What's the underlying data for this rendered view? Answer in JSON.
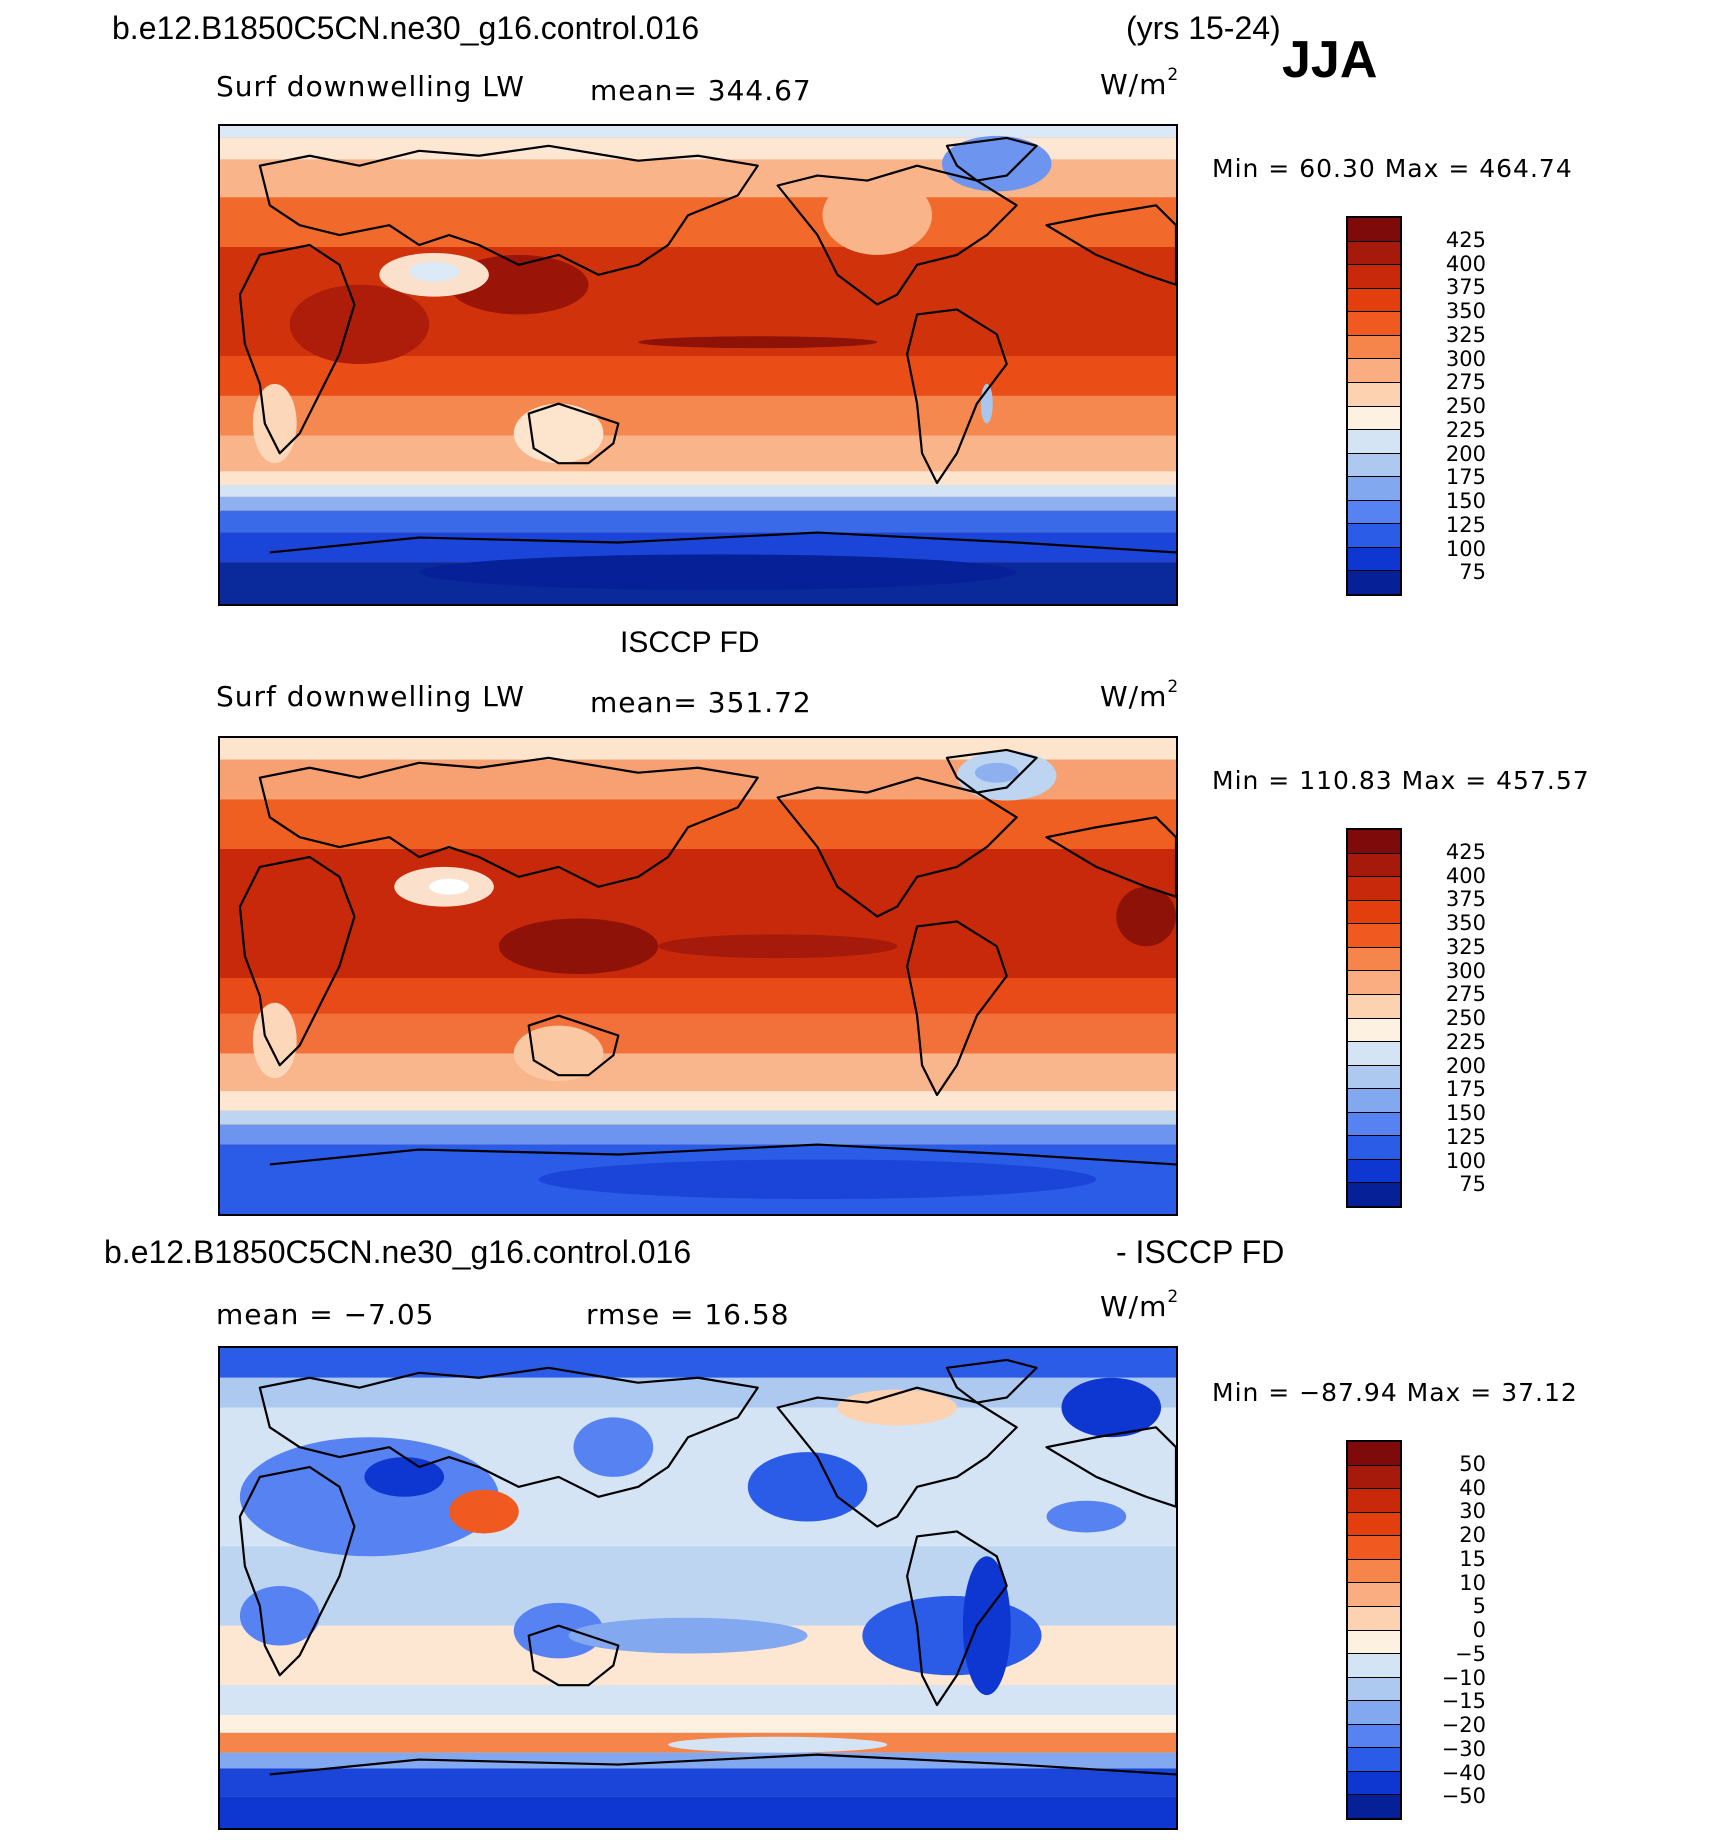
{
  "header": {
    "case_name": "b.e12.B1850C5CN.ne30_g16.control.016",
    "years": "(yrs 15-24)",
    "season": "JJA"
  },
  "panels": [
    {
      "title": "",
      "variable": "Surf downwelling LW",
      "stat": "mean= 344.67",
      "units": "W/m",
      "units_exp": "2",
      "minmax": "Min =  60.30 Max = 464.74"
    },
    {
      "title": "ISCCP FD",
      "variable": "Surf downwelling LW",
      "stat": "mean= 351.72",
      "units": "W/m",
      "units_exp": "2",
      "minmax": "Min = 110.83 Max = 457.57"
    },
    {
      "title_left": "b.e12.B1850C5CN.ne30_g16.control.016",
      "title_right": "- ISCCP FD",
      "stat_mean": "mean =  −7.05",
      "stat_rmse": "rmse =  16.58",
      "units": "W/m",
      "units_exp": "2",
      "minmax": "Min = −87.94 Max =  37.12"
    }
  ],
  "colorbars": {
    "absolute": {
      "labels": [
        "425",
        "400",
        "375",
        "350",
        "325",
        "300",
        "275",
        "250",
        "225",
        "200",
        "175",
        "150",
        "125",
        "100",
        "75"
      ],
      "colors": [
        "#7f0a0a",
        "#a51a0a",
        "#c8290a",
        "#e33f0e",
        "#f05a20",
        "#f5854a",
        "#f9ad80",
        "#fcd2b0",
        "#fdf1e2",
        "#d4e4f4",
        "#adc9f0",
        "#82a8f0",
        "#5682f2",
        "#2a5ce8",
        "#0e36d0",
        "#062098"
      ]
    },
    "difference": {
      "labels": [
        "50",
        "40",
        "30",
        "20",
        "15",
        "10",
        "5",
        "0",
        "−5",
        "−10",
        "−15",
        "−20",
        "−30",
        "−40",
        "−50"
      ],
      "colors": [
        "#7f0a0a",
        "#a51a0a",
        "#c8290a",
        "#e33f0e",
        "#f05a20",
        "#f5854a",
        "#f9ad80",
        "#fcd2b0",
        "#fdf1e2",
        "#d4e4f4",
        "#adc9f0",
        "#82a8f0",
        "#5682f2",
        "#2a5ce8",
        "#0e36d0",
        "#062098"
      ]
    }
  }
}
